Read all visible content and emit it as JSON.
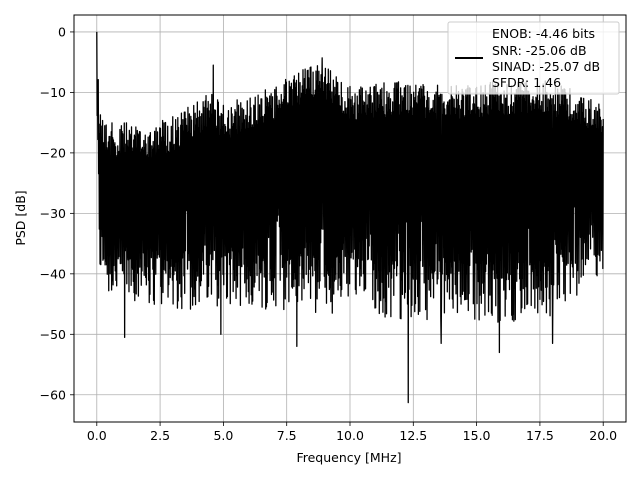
{
  "chart_data": {
    "type": "line",
    "title": "",
    "xlabel": "Frequency [MHz]",
    "ylabel": "PSD [dB]",
    "xlim": [
      -0.9,
      20.9
    ],
    "ylim": [
      -64.5,
      2.8
    ],
    "xticks": [
      0.0,
      2.5,
      5.0,
      7.5,
      10.0,
      12.5,
      15.0,
      17.5,
      20.0
    ],
    "xtick_labels": [
      "0.0",
      "2.5",
      "5.0",
      "7.5",
      "10.0",
      "12.5",
      "15.0",
      "17.5",
      "20.0"
    ],
    "yticks": [
      0,
      -10,
      -20,
      -30,
      -40,
      -50,
      -60
    ],
    "ytick_labels": [
      "0",
      "−10",
      "−20",
      "−30",
      "−40",
      "−50",
      "−60"
    ],
    "grid": true,
    "legend_position": "top-right",
    "series": [
      {
        "color": "#000000",
        "description": "dense noise-like PSD spectrum from 0 to 20 MHz; peak 0 dB at DC",
        "envelope": {
          "x": [
            0.0,
            0.1,
            0.5,
            1.0,
            2.0,
            3.0,
            4.5,
            5.0,
            7.0,
            8.8,
            10.0,
            12.3,
            14.0,
            15.5,
            17.0,
            18.0,
            20.0
          ],
          "upper": [
            0.0,
            -12,
            -15,
            -15,
            -15,
            -14,
            -10,
            -12,
            -9,
            -4.5,
            -9,
            -8,
            -9,
            -8,
            -8,
            -8,
            -12
          ],
          "lower": [
            -13,
            -40,
            -44,
            -44,
            -45,
            -46,
            -46,
            -45,
            -46,
            -47,
            -46,
            -48,
            -47,
            -48,
            -48,
            -47,
            -40
          ]
        },
        "dips": [
          {
            "x": 1.1,
            "y": -50.5
          },
          {
            "x": 4.9,
            "y": -50.0
          },
          {
            "x": 7.9,
            "y": -52.0
          },
          {
            "x": 12.3,
            "y": -61.3
          },
          {
            "x": 13.6,
            "y": -51.5
          },
          {
            "x": 15.9,
            "y": -53.0
          },
          {
            "x": 18.0,
            "y": -51.5
          }
        ],
        "spikes": [
          {
            "x": 0.0,
            "y": 0.0
          },
          {
            "x": 4.6,
            "y": -5.5
          },
          {
            "x": 8.9,
            "y": -4.3
          }
        ]
      }
    ],
    "legend": {
      "lines": [
        "ENOB: -4.46 bits",
        "SNR: -25.06 dB",
        "SINAD: -25.07 dB",
        "SFDR: 1.46"
      ]
    }
  }
}
